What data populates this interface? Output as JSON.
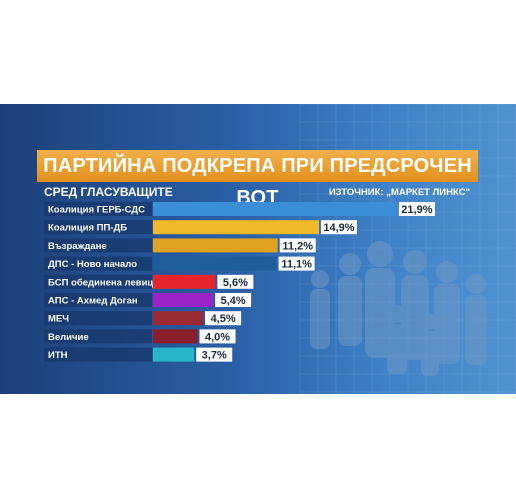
{
  "header": {
    "title": "ПАРТИЙНА ПОДКРЕПА ПРИ ПРЕДСРОЧЕН ВОТ",
    "subtitle": "СРЕД ГЛАСУВАЩИТЕ",
    "source": "ИЗТОЧНИК: „МАРКЕТ ЛИНКС\""
  },
  "colors": {
    "orange": "#e89a26",
    "blue": "#3b8fd8",
    "yellow": "#f0b92a",
    "gold": "#e0a120",
    "darkblue": "#1f5c9c",
    "red": "#e5242c",
    "purple": "#9a22c7",
    "maroon": "#9c2a32",
    "darkred": "#8a1e2a",
    "cyan": "#27b5c8"
  },
  "chart_data": {
    "type": "bar",
    "orientation": "horizontal",
    "unit": "%",
    "categories": [
      "Коалиция ГЕРБ-СДС",
      "Коалиция ПП-ДБ",
      "Възраждане",
      "ДПС - Ново начало",
      "БСП обединена левица",
      "АПС - Ахмед Доган",
      "МЕЧ",
      "Величие",
      "ИТН"
    ],
    "values": [
      21.9,
      14.9,
      11.2,
      11.1,
      5.6,
      5.4,
      4.5,
      4.0,
      3.7
    ],
    "value_labels": [
      "21,9%",
      "14,9%",
      "11,2%",
      "11,1%",
      "5,6%",
      "5,4%",
      "4,5%",
      "4,0%",
      "3,7%"
    ],
    "bar_colors": [
      "#3b8fd8",
      "#f0b92a",
      "#e0a120",
      "#1f5c9c",
      "#e5242c",
      "#9a22c7",
      "#9c2a32",
      "#8a1e2a",
      "#27b5c8"
    ],
    "title": "ПАРТИЙНА ПОДКРЕПА ПРИ ПРЕДСРОЧЕН ВОТ",
    "subtitle": "СРЕД ГЛАСУВАЩИТЕ",
    "xlim": [
      0,
      22
    ]
  }
}
